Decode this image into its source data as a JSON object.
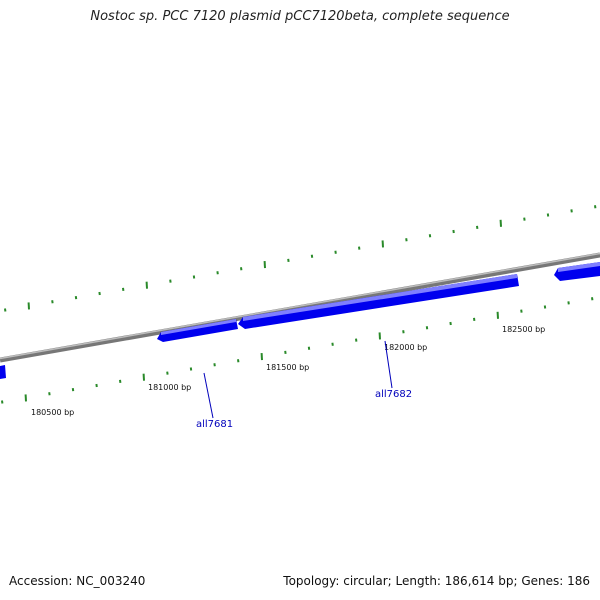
{
  "title": "Nostoc sp. PCC 7120 plasmid pCC7120beta, complete sequence",
  "footer": {
    "accession": "Accession: NC_003240",
    "stats": "Topology: circular; Length: 186,614 bp; Genes: 186"
  },
  "position_labels": [
    "180500 bp",
    "181000 bp",
    "181500 bp",
    "182000 bp",
    "182500 bp"
  ],
  "gene_labels": [
    "all7681",
    "all7682"
  ],
  "colors": {
    "gene": "#0000ee",
    "gene_highlight": "#7f7fff",
    "backbone": "#888888",
    "tick": "#2a8a2a",
    "gene_label": "#0000bb"
  }
}
